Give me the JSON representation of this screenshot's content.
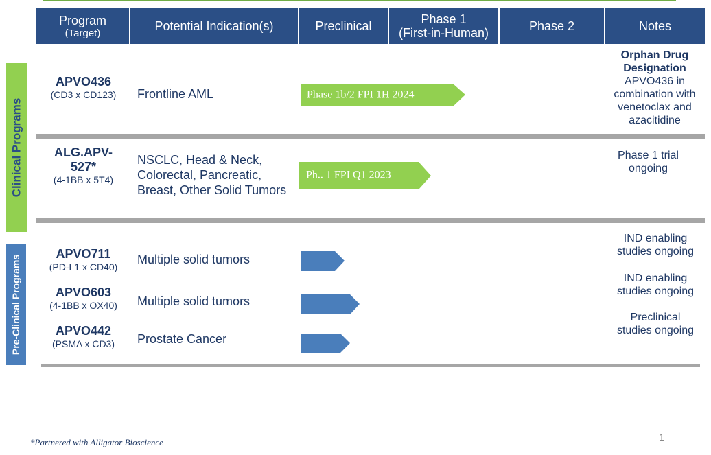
{
  "header": {
    "columns": [
      {
        "title": "Program",
        "subtitle": "(Target)"
      },
      {
        "title": "Potential Indication(s)"
      },
      {
        "title": "Preclinical"
      },
      {
        "title": "Phase 1",
        "subtitle": "(First-in-Human)"
      },
      {
        "title": "Phase 2"
      },
      {
        "title": "Notes"
      }
    ]
  },
  "sections": [
    {
      "label": "Clinical Programs"
    },
    {
      "label": "Pre-Clinical Programs"
    }
  ],
  "programs": [
    {
      "name": "APVO436",
      "target": "(CD3 x CD123)",
      "indication": "Frontline AML",
      "bar_label": "Phase 1b/2 FPI 1H 2024",
      "notes_title": "Orphan Drug Designation",
      "notes": "APVO436  in combination with venetoclax and azacitidine"
    },
    {
      "name": "ALG.APV-527*",
      "target": "(4-1BB x 5T4)",
      "indication": "NSCLC, Head & Neck, Colorectal, Pancreatic, Breast, Other Solid Tumors",
      "bar_label": "Ph.. 1 FPI Q1 2023",
      "notes": "Phase 1 trial ongoing"
    },
    {
      "name": "APVO711",
      "target": "(PD-L1 x CD40)",
      "indication": "Multiple solid tumors",
      "notes": "IND enabling studies ongoing"
    },
    {
      "name": "APVO603",
      "target": "(4-1BB x OX40)",
      "indication": "Multiple solid tumors",
      "notes": "IND enabling studies ongoing"
    },
    {
      "name": "APVO442",
      "target": "(PSMA x CD3)",
      "indication": "Prostate Cancer",
      "notes": "Preclinical studies ongoing"
    }
  ],
  "footnote": "*Partnered with Alligator Bioscience",
  "page_number": "1"
}
